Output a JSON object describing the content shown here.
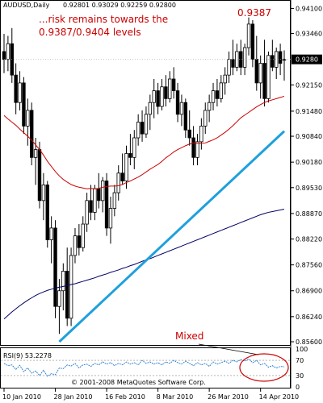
{
  "chart_data": {
    "type": "candlestick",
    "symbol_header": "AUDUSD,Daily",
    "ohlc_header": "0.92801 0.93029 0.92259 0.92800",
    "annotation_risk": "...risk remains towards the 0.9387/0.9404 levels",
    "annotation_risk_lines": [
      "...risk remains towards the",
      "0.9387/0.9404 levels"
    ],
    "annotation_peak": "0.9387",
    "annotation_rsi": "Mixed",
    "copyright": "© 2001-2008 MetaQuotes Software Corp.",
    "current_price": "0.9280",
    "price_axis_labels": [
      "0.94100",
      "0.93460",
      "0.92150",
      "0.91480",
      "0.90840",
      "0.90180",
      "0.89530",
      "0.88870",
      "0.88220",
      "0.87560",
      "0.86900",
      "0.86240",
      "0.85600"
    ],
    "price_axis_values": [
      0.941,
      0.9346,
      0.9215,
      0.9148,
      0.9084,
      0.9018,
      0.8953,
      0.8887,
      0.8822,
      0.8756,
      0.869,
      0.8624,
      0.856
    ],
    "x_tick_labels": [
      "10 Jan 2010",
      "28 Jan 2010",
      "16 Feb 2010",
      "8 Mar 2010",
      "26 Mar 2010",
      "14 Apr 2010"
    ],
    "x_tick_bar_index": [
      0,
      13,
      26,
      39,
      52,
      65
    ],
    "ylim": [
      0.856,
      0.9415
    ],
    "rsi": {
      "label": "RSI(9) 53.2278",
      "ticks": [
        "100",
        "70",
        "30",
        "0"
      ],
      "tick_values": [
        100,
        70,
        30,
        0
      ],
      "values": [
        62,
        56,
        58,
        46,
        57,
        40,
        50,
        36,
        42,
        30,
        44,
        28,
        35,
        32,
        50,
        48,
        58,
        55,
        62,
        50,
        58,
        60,
        54,
        62,
        58,
        66,
        60,
        64,
        56,
        62,
        58,
        66,
        60,
        64,
        58,
        70,
        62,
        66,
        60,
        64,
        58,
        66,
        62,
        70,
        64,
        60,
        68,
        62,
        56,
        64,
        58,
        62,
        54,
        66,
        60,
        64,
        68,
        62,
        70,
        66,
        72,
        68,
        74,
        64,
        70,
        58,
        62,
        52,
        56,
        50,
        54,
        53
      ]
    },
    "series": [
      {
        "name": "EMA21",
        "color": "#cc0000",
        "values": [
          0.9137,
          0.9128,
          0.912,
          0.9112,
          0.9102,
          0.9093,
          0.9084,
          0.9074,
          0.9062,
          0.905,
          0.9036,
          0.902,
          0.9007,
          0.8994,
          0.8983,
          0.8974,
          0.8967,
          0.8961,
          0.8957,
          0.8954,
          0.8952,
          0.895,
          0.8951,
          0.895,
          0.8951,
          0.8954,
          0.8956,
          0.8957,
          0.8957,
          0.8958,
          0.8961,
          0.8966,
          0.897,
          0.8975,
          0.898,
          0.8986,
          0.8993,
          0.9,
          0.9006,
          0.9012,
          0.902,
          0.9029,
          0.9036,
          0.9044,
          0.905,
          0.9055,
          0.906,
          0.9064,
          0.9067,
          0.9066,
          0.9066,
          0.9067,
          0.9071,
          0.9075,
          0.908,
          0.9087,
          0.9094,
          0.9102,
          0.9111,
          0.9121,
          0.9131,
          0.9138,
          0.9145,
          0.9152,
          0.9159,
          0.9165,
          0.917,
          0.9174,
          0.9177,
          0.918,
          0.9183,
          0.9186
        ]
      },
      {
        "name": "SMA200",
        "color": "#000066",
        "values": [
          0.8618,
          0.8627,
          0.8636,
          0.8644,
          0.8652,
          0.8659,
          0.8666,
          0.8672,
          0.8678,
          0.8683,
          0.8687,
          0.8691,
          0.8694,
          0.8697,
          0.8699,
          0.8701,
          0.8703,
          0.8706,
          0.8708,
          0.8711,
          0.8714,
          0.8717,
          0.872,
          0.8723,
          0.8727,
          0.873,
          0.8733,
          0.8737,
          0.874,
          0.8743,
          0.8747,
          0.875,
          0.8754,
          0.8757,
          0.8761,
          0.8765,
          0.8769,
          0.8772,
          0.8776,
          0.878,
          0.8784,
          0.8788,
          0.8792,
          0.8796,
          0.88,
          0.8804,
          0.8808,
          0.8812,
          0.8816,
          0.882,
          0.8824,
          0.8828,
          0.8832,
          0.8836,
          0.884,
          0.8844,
          0.8848,
          0.8852,
          0.8856,
          0.886,
          0.8864,
          0.8868,
          0.8872,
          0.8876,
          0.888,
          0.8884,
          0.8887,
          0.889,
          0.8892,
          0.8894,
          0.8896,
          0.8898
        ]
      },
      {
        "name": "trendline",
        "color": "#1ea0dc",
        "points": [
          [
            14,
            0.856
          ],
          [
            71,
            0.9097
          ]
        ]
      }
    ],
    "candles": [
      [
        0.93,
        0.9345,
        0.9245,
        0.928
      ],
      [
        0.928,
        0.934,
        0.925,
        0.932
      ],
      [
        0.932,
        0.936,
        0.922,
        0.924
      ],
      [
        0.924,
        0.927,
        0.914,
        0.917
      ],
      [
        0.917,
        0.925,
        0.915,
        0.922
      ],
      [
        0.922,
        0.9235,
        0.909,
        0.911
      ],
      [
        0.911,
        0.918,
        0.906,
        0.915
      ],
      [
        0.915,
        0.917,
        0.901,
        0.903
      ],
      [
        0.903,
        0.908,
        0.896,
        0.905
      ],
      [
        0.905,
        0.907,
        0.89,
        0.892
      ],
      [
        0.892,
        0.899,
        0.887,
        0.896
      ],
      [
        0.896,
        0.897,
        0.88,
        0.882
      ],
      [
        0.882,
        0.888,
        0.876,
        0.885
      ],
      [
        0.885,
        0.887,
        0.862,
        0.865
      ],
      [
        0.865,
        0.872,
        0.858,
        0.869
      ],
      [
        0.869,
        0.876,
        0.864,
        0.874
      ],
      [
        0.874,
        0.88,
        0.86,
        0.862
      ],
      [
        0.862,
        0.88,
        0.86,
        0.878
      ],
      [
        0.878,
        0.885,
        0.876,
        0.883
      ],
      [
        0.883,
        0.886,
        0.878,
        0.88
      ],
      [
        0.88,
        0.888,
        0.879,
        0.886
      ],
      [
        0.886,
        0.894,
        0.884,
        0.892
      ],
      [
        0.892,
        0.896,
        0.887,
        0.889
      ],
      [
        0.889,
        0.896,
        0.887,
        0.895
      ],
      [
        0.895,
        0.899,
        0.89,
        0.892
      ],
      [
        0.892,
        0.898,
        0.889,
        0.897
      ],
      [
        0.897,
        0.899,
        0.883,
        0.885
      ],
      [
        0.885,
        0.893,
        0.881,
        0.89
      ],
      [
        0.89,
        0.896,
        0.888,
        0.894
      ],
      [
        0.894,
        0.901,
        0.892,
        0.899
      ],
      [
        0.899,
        0.904,
        0.896,
        0.897
      ],
      [
        0.897,
        0.906,
        0.895,
        0.904
      ],
      [
        0.904,
        0.909,
        0.901,
        0.903
      ],
      [
        0.903,
        0.91,
        0.9,
        0.908
      ],
      [
        0.908,
        0.914,
        0.906,
        0.912
      ],
      [
        0.912,
        0.915,
        0.907,
        0.909
      ],
      [
        0.909,
        0.916,
        0.908,
        0.914
      ],
      [
        0.914,
        0.919,
        0.91,
        0.917
      ],
      [
        0.917,
        0.923,
        0.913,
        0.92
      ],
      [
        0.92,
        0.922,
        0.914,
        0.916
      ],
      [
        0.916,
        0.923,
        0.915,
        0.921
      ],
      [
        0.921,
        0.924,
        0.916,
        0.918
      ],
      [
        0.918,
        0.925,
        0.917,
        0.923
      ],
      [
        0.923,
        0.926,
        0.918,
        0.92
      ],
      [
        0.92,
        0.922,
        0.912,
        0.914
      ],
      [
        0.914,
        0.919,
        0.911,
        0.917
      ],
      [
        0.917,
        0.918,
        0.908,
        0.91
      ],
      [
        0.91,
        0.915,
        0.906,
        0.908
      ],
      [
        0.908,
        0.911,
        0.901,
        0.903
      ],
      [
        0.903,
        0.909,
        0.901,
        0.907
      ],
      [
        0.907,
        0.913,
        0.905,
        0.911
      ],
      [
        0.911,
        0.917,
        0.909,
        0.915
      ],
      [
        0.915,
        0.919,
        0.912,
        0.917
      ],
      [
        0.917,
        0.922,
        0.915,
        0.92
      ],
      [
        0.92,
        0.923,
        0.916,
        0.918
      ],
      [
        0.918,
        0.924,
        0.917,
        0.922
      ],
      [
        0.922,
        0.926,
        0.919,
        0.924
      ],
      [
        0.924,
        0.93,
        0.922,
        0.928
      ],
      [
        0.928,
        0.933,
        0.924,
        0.926
      ],
      [
        0.926,
        0.932,
        0.925,
        0.93
      ],
      [
        0.93,
        0.933,
        0.924,
        0.926
      ],
      [
        0.926,
        0.932,
        0.924,
        0.931
      ],
      [
        0.931,
        0.9387,
        0.929,
        0.937
      ],
      [
        0.937,
        0.938,
        0.926,
        0.928
      ],
      [
        0.928,
        0.934,
        0.92,
        0.922
      ],
      [
        0.922,
        0.929,
        0.918,
        0.927
      ],
      [
        0.927,
        0.933,
        0.916,
        0.918
      ],
      [
        0.918,
        0.93,
        0.917,
        0.929
      ],
      [
        0.929,
        0.933,
        0.925,
        0.926
      ],
      [
        0.926,
        0.931,
        0.923,
        0.93
      ],
      [
        0.93,
        0.932,
        0.924,
        0.927
      ],
      [
        0.92801,
        0.93029,
        0.92259,
        0.928
      ]
    ]
  }
}
